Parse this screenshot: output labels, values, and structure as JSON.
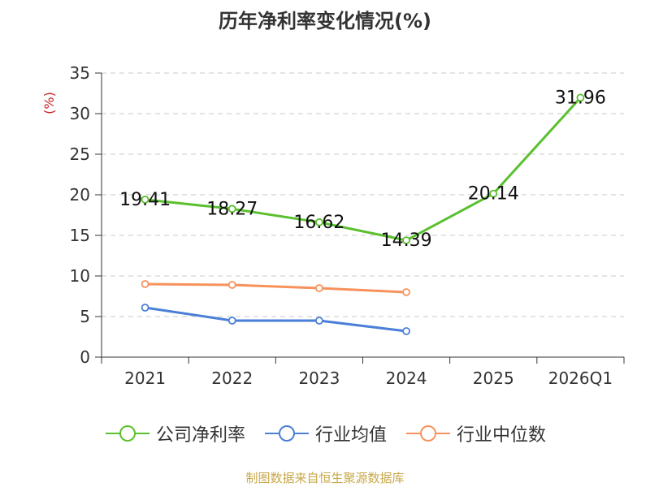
{
  "chart_data": {
    "type": "line",
    "title": "历年净利率变化情况(%)",
    "ylabel": "(%)",
    "xlabel": "",
    "categories": [
      "2021",
      "2022",
      "2023",
      "2024",
      "2025",
      "2026Q1"
    ],
    "ylim": [
      0,
      35
    ],
    "yticks": [
      0,
      5,
      10,
      15,
      20,
      25,
      30,
      35
    ],
    "grid": true,
    "legend_position": "bottom",
    "series": [
      {
        "name": "公司净利率",
        "color": "#5ac02e",
        "values": [
          19.41,
          18.27,
          16.62,
          14.39,
          20.14,
          31.96
        ],
        "show_labels": true
      },
      {
        "name": "行业均值",
        "color": "#4a7fd8",
        "values": [
          6.1,
          4.5,
          4.5,
          3.2,
          null,
          null
        ],
        "show_labels": false
      },
      {
        "name": "行业中位数",
        "color": "#f7925b",
        "values": [
          9.0,
          8.9,
          8.5,
          8.0,
          null,
          null
        ],
        "show_labels": false
      }
    ]
  },
  "source": "制图数据来自恒生聚源数据库"
}
